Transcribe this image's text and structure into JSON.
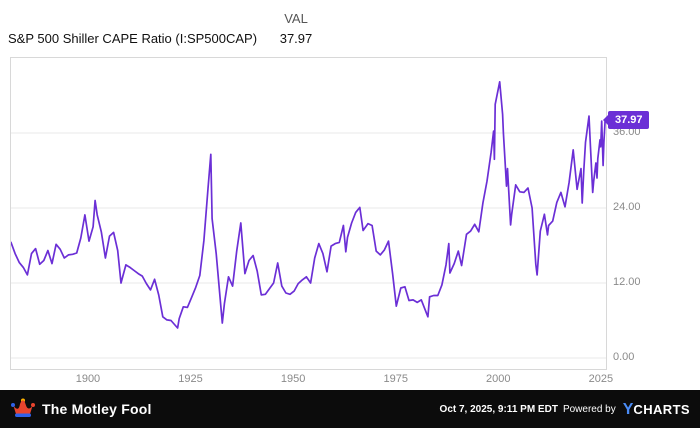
{
  "header": {
    "val_label": "VAL",
    "val_value": "37.97",
    "title": "S&P 500 Shiller CAPE Ratio (I:SP500CAP)"
  },
  "badge": {
    "label": "37.97"
  },
  "colors": {
    "line": "#6b2fd6",
    "grid": "#e8e8e8",
    "footer_bg": "#0c0c0c",
    "ycharts_blue": "#4a8cf7",
    "brand_red": "#e8442e",
    "brand_blue": "#2e61e8",
    "brand_gold": "#ffb300"
  },
  "footer": {
    "brand": "The Motley Fool",
    "timestamp": "Oct 7, 2025, 9:11 PM EDT",
    "powered_by": "Powered by",
    "ycharts_y": "Y",
    "ycharts_rest": "CHARTS"
  },
  "chart_data": {
    "type": "line",
    "title": "S&P 500 Shiller CAPE Ratio (I:SP500CAP)",
    "series_name": "S&P 500 Shiller CAPE Ratio",
    "current_value": 37.97,
    "xlim": [
      1881,
      2026
    ],
    "ylim": [
      0,
      48
    ],
    "grid": "horizontal",
    "legend": "none",
    "x_ticks": [
      {
        "value": 1900,
        "label": "1900"
      },
      {
        "value": 1925,
        "label": "1925"
      },
      {
        "value": 1950,
        "label": "1950"
      },
      {
        "value": 1975,
        "label": "1975"
      },
      {
        "value": 2000,
        "label": "2000"
      },
      {
        "value": 2025,
        "label": "2025"
      }
    ],
    "y_ticks": [
      {
        "value": 36,
        "label": "36.00"
      },
      {
        "value": 24,
        "label": "24.00"
      },
      {
        "value": 12,
        "label": "12.00"
      },
      {
        "value": 0,
        "label": "0.00"
      }
    ],
    "points": [
      [
        1881,
        18.5
      ],
      [
        1882,
        16.7
      ],
      [
        1883,
        15.3
      ],
      [
        1884,
        14.5
      ],
      [
        1885,
        13.3
      ],
      [
        1886,
        16.7
      ],
      [
        1887,
        17.5
      ],
      [
        1888,
        15.0
      ],
      [
        1889,
        15.6
      ],
      [
        1890,
        17.2
      ],
      [
        1891,
        15.1
      ],
      [
        1892,
        18.2
      ],
      [
        1893,
        17.4
      ],
      [
        1894,
        16.0
      ],
      [
        1895,
        16.5
      ],
      [
        1896,
        16.6
      ],
      [
        1897,
        16.8
      ],
      [
        1898,
        19.2
      ],
      [
        1899,
        22.9
      ],
      [
        1900,
        18.7
      ],
      [
        1901,
        21.0
      ],
      [
        1901.5,
        25.2
      ],
      [
        1902,
        22.9
      ],
      [
        1903,
        20.2
      ],
      [
        1904,
        16.0
      ],
      [
        1905,
        19.5
      ],
      [
        1906,
        20.1
      ],
      [
        1907,
        17.2
      ],
      [
        1907.8,
        12.0
      ],
      [
        1909,
        14.9
      ],
      [
        1910,
        14.5
      ],
      [
        1911,
        14.0
      ],
      [
        1912,
        13.5
      ],
      [
        1913,
        13.1
      ],
      [
        1914,
        11.9
      ],
      [
        1915,
        10.9
      ],
      [
        1916,
        12.6
      ],
      [
        1917,
        10.1
      ],
      [
        1918,
        6.6
      ],
      [
        1919,
        6.1
      ],
      [
        1920,
        6.0
      ],
      [
        1921.6,
        4.8
      ],
      [
        1922,
        6.3
      ],
      [
        1923,
        8.2
      ],
      [
        1924,
        8.1
      ],
      [
        1925,
        9.7
      ],
      [
        1926,
        11.3
      ],
      [
        1927,
        13.2
      ],
      [
        1928,
        18.8
      ],
      [
        1929,
        27.1
      ],
      [
        1929.7,
        32.6
      ],
      [
        1930,
        22.3
      ],
      [
        1931,
        16.7
      ],
      [
        1932.5,
        5.6
      ],
      [
        1933,
        8.7
      ],
      [
        1934,
        13.0
      ],
      [
        1935,
        11.5
      ],
      [
        1936,
        17.1
      ],
      [
        1937,
        21.6
      ],
      [
        1938,
        13.5
      ],
      [
        1939,
        15.6
      ],
      [
        1940,
        16.4
      ],
      [
        1941,
        13.9
      ],
      [
        1942,
        10.1
      ],
      [
        1943,
        10.2
      ],
      [
        1944,
        11.1
      ],
      [
        1945,
        12.0
      ],
      [
        1946,
        15.2
      ],
      [
        1947,
        11.5
      ],
      [
        1948,
        10.4
      ],
      [
        1949,
        10.2
      ],
      [
        1950,
        10.7
      ],
      [
        1951,
        11.9
      ],
      [
        1952,
        12.5
      ],
      [
        1953,
        13.0
      ],
      [
        1954,
        12.0
      ],
      [
        1955,
        16.0
      ],
      [
        1956,
        18.3
      ],
      [
        1957,
        16.7
      ],
      [
        1958,
        13.8
      ],
      [
        1959,
        17.9
      ],
      [
        1960,
        18.3
      ],
      [
        1961,
        18.5
      ],
      [
        1962,
        21.2
      ],
      [
        1962.6,
        17.0
      ],
      [
        1963,
        19.3
      ],
      [
        1964,
        21.6
      ],
      [
        1965,
        23.3
      ],
      [
        1966,
        24.1
      ],
      [
        1966.8,
        20.4
      ],
      [
        1968,
        21.5
      ],
      [
        1969,
        21.2
      ],
      [
        1970,
        17.1
      ],
      [
        1971,
        16.5
      ],
      [
        1972,
        17.3
      ],
      [
        1973,
        18.7
      ],
      [
        1974,
        13.5
      ],
      [
        1974.9,
        8.3
      ],
      [
        1976,
        11.2
      ],
      [
        1977,
        11.4
      ],
      [
        1978,
        9.2
      ],
      [
        1979,
        9.3
      ],
      [
        1980,
        8.9
      ],
      [
        1981,
        9.3
      ],
      [
        1982.6,
        6.6
      ],
      [
        1983,
        9.8
      ],
      [
        1984,
        10.0
      ],
      [
        1985,
        10.0
      ],
      [
        1986,
        11.7
      ],
      [
        1987,
        14.9
      ],
      [
        1987.7,
        18.3
      ],
      [
        1987.95,
        13.6
      ],
      [
        1989,
        15.1
      ],
      [
        1990,
        17.1
      ],
      [
        1990.8,
        14.8
      ],
      [
        1992,
        19.8
      ],
      [
        1993,
        20.3
      ],
      [
        1994,
        21.4
      ],
      [
        1995,
        20.2
      ],
      [
        1996,
        24.8
      ],
      [
        1997,
        28.3
      ],
      [
        1998,
        32.9
      ],
      [
        1998.6,
        36.3
      ],
      [
        1998.8,
        31.8
      ],
      [
        1999,
        40.6
      ],
      [
        2000.1,
        44.2
      ],
      [
        2000.8,
        39.0
      ],
      [
        2001,
        36.0
      ],
      [
        2001.75,
        27.5
      ],
      [
        2002,
        30.3
      ],
      [
        2002.75,
        21.3
      ],
      [
        2003,
        22.9
      ],
      [
        2004,
        27.7
      ],
      [
        2005,
        26.6
      ],
      [
        2006,
        26.5
      ],
      [
        2007,
        27.2
      ],
      [
        2008,
        24.0
      ],
      [
        2008.9,
        15.0
      ],
      [
        2009.2,
        13.3
      ],
      [
        2010,
        20.3
      ],
      [
        2011,
        23.0
      ],
      [
        2011.75,
        19.7
      ],
      [
        2012,
        21.2
      ],
      [
        2013,
        21.9
      ],
      [
        2014,
        24.9
      ],
      [
        2015,
        26.5
      ],
      [
        2016,
        24.2
      ],
      [
        2017,
        28.1
      ],
      [
        2018,
        33.3
      ],
      [
        2018.95,
        27.0
      ],
      [
        2019.9,
        30.3
      ],
      [
        2020.2,
        24.8
      ],
      [
        2020.6,
        30.0
      ],
      [
        2021,
        34.5
      ],
      [
        2021.85,
        38.7
      ],
      [
        2022.2,
        34.0
      ],
      [
        2022.75,
        26.5
      ],
      [
        2023,
        28.3
      ],
      [
        2023.55,
        31.2
      ],
      [
        2023.8,
        28.8
      ],
      [
        2024,
        31.9
      ],
      [
        2024.55,
        34.9
      ],
      [
        2024.7,
        33.8
      ],
      [
        2024.95,
        37.9
      ],
      [
        2025.3,
        30.8
      ],
      [
        2025.5,
        34.5
      ],
      [
        2025.77,
        37.97
      ]
    ]
  }
}
